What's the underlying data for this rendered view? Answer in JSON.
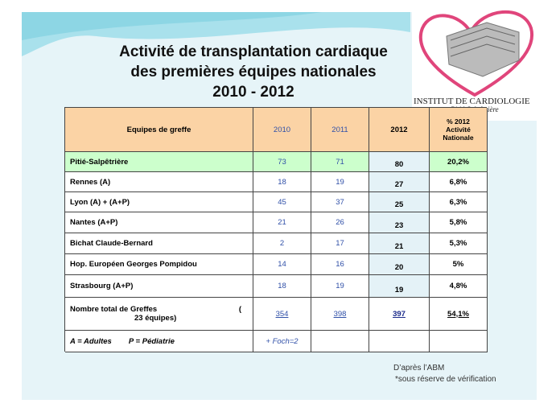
{
  "title": [
    "Activité de transplantation cardiaque",
    "des  premières équipes nationales",
    "2010 - 2012"
  ],
  "logo": {
    "name": "INSTITUT DE CARDIOLOGIE",
    "place": "Pitié-Salpêtrière"
  },
  "table": {
    "header": [
      "Equipes de greffe",
      "2010",
      "2011",
      "2012"
    ],
    "header_pct": [
      "%  2012",
      "Activité",
      "Nationale"
    ],
    "rows": [
      [
        "Pitié-Salpêtrière",
        "73",
        "71",
        "80",
        "20,2%"
      ],
      [
        "Rennes (A)",
        "18",
        "19",
        "27",
        "6,8%"
      ],
      [
        "Lyon (A) + (A+P)",
        "45",
        "37",
        "25",
        "6,3%"
      ],
      [
        "Nantes (A+P)",
        "21",
        "26",
        "23",
        "5,8%"
      ],
      [
        "Bichat Claude-Bernard",
        "2",
        "17",
        "21",
        "5,3%"
      ],
      [
        "Hop. Européen Georges Pompidou",
        "14",
        "16",
        "20",
        "5%"
      ],
      [
        "Strasbourg (A+P)",
        "18",
        "19",
        "19",
        "4,8%"
      ]
    ],
    "total": {
      "label": [
        "Nombre total de Greffes",
        "(",
        "23 équipes)"
      ],
      "values": [
        "354",
        "398",
        "397",
        "54,1%"
      ]
    },
    "legend": {
      "text": "A = Adultes        P = Pédiatrie",
      "note": "+ Foch=2"
    }
  },
  "footnotes": [
    "D’après l’ABM",
    "*sous réserve de vérification"
  ]
}
